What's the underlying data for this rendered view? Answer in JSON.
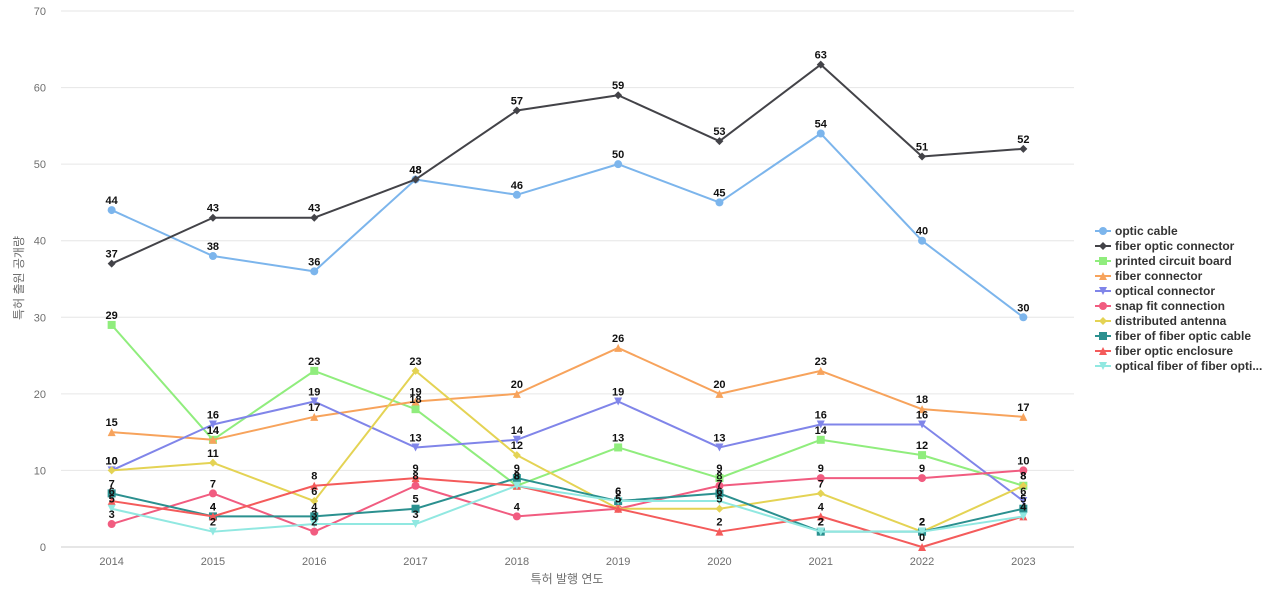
{
  "chart_data": {
    "type": "line",
    "title": "",
    "xlabel": "특허 발행 연도",
    "ylabel": "특허 출원 공개량",
    "x": [
      "2014",
      "2015",
      "2016",
      "2017",
      "2018",
      "2019",
      "2020",
      "2021",
      "2022",
      "2023"
    ],
    "ylim": [
      0,
      70
    ],
    "yticks": [
      0,
      10,
      20,
      30,
      40,
      50,
      60,
      70
    ],
    "grid": true,
    "legend_position": "right",
    "series": [
      {
        "name": "optic cable",
        "color": "#7cb5ec",
        "marker": "circle",
        "values": [
          44,
          38,
          36,
          48,
          46,
          50,
          45,
          54,
          40,
          30
        ]
      },
      {
        "name": "fiber optic connector",
        "color": "#434348",
        "marker": "diamond",
        "values": [
          37,
          43,
          43,
          48,
          57,
          59,
          53,
          63,
          51,
          52
        ]
      },
      {
        "name": "printed circuit board",
        "color": "#90ed7d",
        "marker": "square",
        "values": [
          29,
          14,
          23,
          18,
          8,
          13,
          9,
          14,
          12,
          8
        ]
      },
      {
        "name": "fiber connector",
        "color": "#f7a35c",
        "marker": "triangle",
        "values": [
          15,
          14,
          17,
          19,
          20,
          26,
          20,
          23,
          18,
          17
        ]
      },
      {
        "name": "optical connector",
        "color": "#8085e9",
        "marker": "triangle-down",
        "values": [
          10,
          16,
          19,
          13,
          14,
          19,
          13,
          16,
          16,
          6
        ]
      },
      {
        "name": "snap fit connection",
        "color": "#f15c80",
        "marker": "circle",
        "values": [
          3,
          7,
          2,
          8,
          4,
          5,
          8,
          9,
          9,
          10
        ]
      },
      {
        "name": "distributed antenna",
        "color": "#e4d354",
        "marker": "diamond",
        "values": [
          10,
          11,
          6,
          23,
          12,
          5,
          5,
          7,
          2,
          8
        ]
      },
      {
        "name": "fiber of fiber optic cable",
        "color": "#2b908f",
        "marker": "square",
        "values": [
          7,
          4,
          4,
          5,
          9,
          6,
          7,
          2,
          2,
          5
        ]
      },
      {
        "name": "fiber optic enclosure",
        "color": "#f45b5b",
        "marker": "triangle",
        "values": [
          6,
          4,
          8,
          9,
          8,
          5,
          2,
          4,
          0,
          4
        ]
      },
      {
        "name": "optical fiber of fiber opti...",
        "color": "#91e8e1",
        "marker": "triangle-down",
        "values": [
          5,
          2,
          3,
          3,
          8,
          6,
          6,
          2,
          2,
          4
        ]
      }
    ]
  }
}
